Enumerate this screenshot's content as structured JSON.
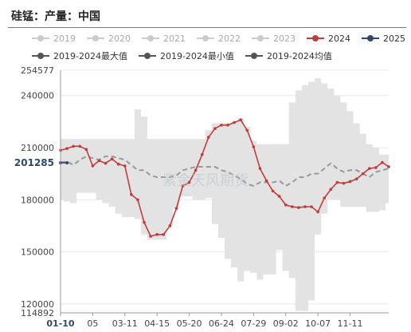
{
  "title": "硅锰：产量：中国",
  "colors": {
    "band": "#e3e3e3",
    "line2024": "#c23b3b",
    "line2025": "#2e4a66",
    "avg": "#999999",
    "legend_inactive": "#cccccc",
    "legend_dark": "#555555"
  },
  "legend": [
    {
      "label": "2019",
      "color": "#cccccc",
      "text_color": "#aaaaaa"
    },
    {
      "label": "2020",
      "color": "#cccccc",
      "text_color": "#aaaaaa"
    },
    {
      "label": "2021",
      "color": "#cccccc",
      "text_color": "#aaaaaa"
    },
    {
      "label": "2022",
      "color": "#cccccc",
      "text_color": "#aaaaaa"
    },
    {
      "label": "2023",
      "color": "#cccccc",
      "text_color": "#aaaaaa"
    },
    {
      "label": "2024",
      "color": "#c23b3b",
      "text_color": "#333333"
    },
    {
      "label": "2025",
      "color": "#2e4a66",
      "text_color": "#333333"
    },
    {
      "label": "2019-2024最大值",
      "color": "#555555",
      "text_color": "#333333"
    },
    {
      "label": "2019-2024最小值",
      "color": "#555555",
      "text_color": "#333333"
    },
    {
      "label": "2019-2024均值",
      "color": "#555555",
      "text_color": "#333333"
    }
  ],
  "watermark": "紫金天风期货",
  "chart_data": {
    "type": "line",
    "title": "硅锰：产量：中国",
    "ylim": [
      114892,
      254577
    ],
    "y_ticks": [
      114892,
      120000,
      150000,
      180000,
      210000,
      240000,
      254577
    ],
    "x_ticks": [
      "01-10",
      "05",
      "03-11",
      "04-15",
      "05-20",
      "06-24",
      "07-29",
      "09-02",
      "10-07",
      "11-11"
    ],
    "current_value_label": "201285",
    "week_count": 52,
    "series": [
      {
        "name": "2024",
        "values": [
          208500,
          209500,
          210800,
          210800,
          209000,
          199500,
          202500,
          201000,
          203500,
          200500,
          199500,
          183000,
          180000,
          167000,
          159000,
          160000,
          160000,
          165000,
          175000,
          188000,
          190000,
          197000,
          206000,
          216000,
          221000,
          223000,
          223000,
          224500,
          226000,
          220000,
          210500,
          198000,
          191000,
          185000,
          182000,
          177000,
          176000,
          175500,
          176000,
          176000,
          173000,
          181000,
          186000,
          190000,
          189500,
          190500,
          192000,
          195000,
          198000,
          198500,
          201500,
          199000
        ]
      },
      {
        "name": "2025",
        "values": [
          201285,
          201285
        ]
      },
      {
        "name": "2019-2024最大值",
        "values": [
          215000,
          215000,
          215000,
          215000,
          215000,
          215000,
          215000,
          215000,
          215000,
          215000,
          215000,
          215000,
          232000,
          228000,
          215000,
          215000,
          215000,
          215000,
          215000,
          215000,
          215000,
          215000,
          215000,
          220000,
          224000,
          224000,
          224000,
          225000,
          227000,
          222000,
          214000,
          212000,
          212000,
          212000,
          212000,
          212000,
          236000,
          243000,
          246000,
          248000,
          250000,
          247000,
          244000,
          240000,
          236000,
          231000,
          224000,
          218000,
          212000,
          210000,
          206000,
          206000
        ]
      },
      {
        "name": "2019-2024最小值",
        "values": [
          180000,
          179000,
          178000,
          184000,
          184000,
          184000,
          180000,
          178000,
          176000,
          172000,
          170000,
          170000,
          169000,
          160000,
          157000,
          157000,
          157000,
          165000,
          175000,
          182000,
          182000,
          180000,
          180000,
          181000,
          166000,
          158000,
          146000,
          141000,
          133000,
          139000,
          138000,
          134000,
          137000,
          137000,
          151000,
          139000,
          135000,
          116000,
          116000,
          122000,
          160000,
          172000,
          180000,
          180000,
          176000,
          176000,
          176000,
          176000,
          173000,
          173000,
          174000,
          178000
        ]
      },
      {
        "name": "2019-2024均值",
        "values": [
          201500,
          202000,
          200000,
          203000,
          205000,
          204000,
          203000,
          205000,
          205000,
          204000,
          203000,
          200000,
          197000,
          197000,
          194000,
          193000,
          193000,
          193000,
          194000,
          197000,
          198000,
          199000,
          199000,
          199000,
          199000,
          197000,
          196000,
          194000,
          192000,
          189000,
          188000,
          190000,
          190000,
          190000,
          191000,
          188000,
          190000,
          193000,
          193000,
          195000,
          195000,
          198000,
          201000,
          198000,
          196000,
          197000,
          197000,
          195000,
          193000,
          196000,
          197000,
          198000
        ]
      }
    ]
  }
}
